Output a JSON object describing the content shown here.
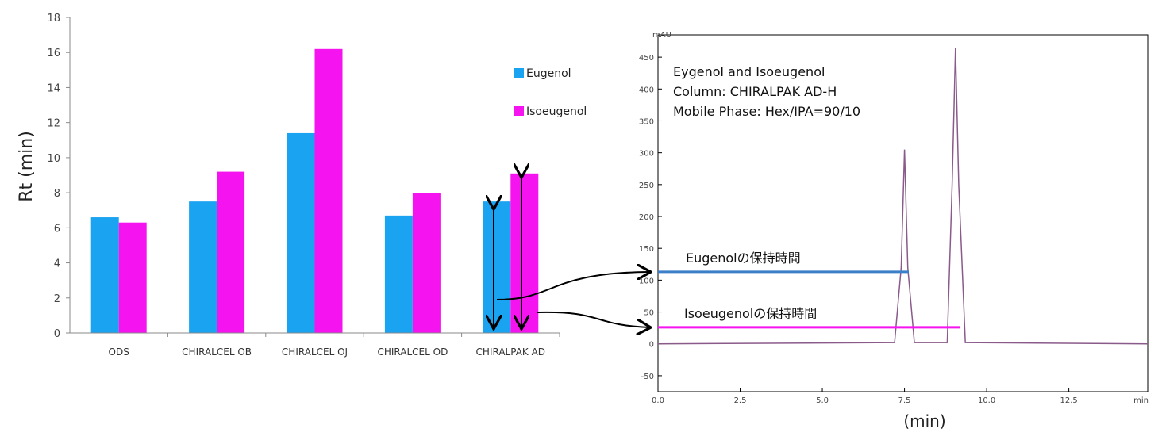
{
  "chart_data": [
    {
      "type": "bar",
      "categories": [
        "ODS",
        "CHIRALCEL OB",
        "CHIRALCEL OJ",
        "CHIRALCEL OD",
        "CHIRALPAK AD"
      ],
      "series": [
        {
          "name": "Eugenol",
          "values": [
            6.6,
            7.5,
            11.4,
            6.7,
            7.5
          ],
          "color": "#1aa3f0"
        },
        {
          "name": "Isoeugenol",
          "values": [
            6.3,
            9.2,
            16.2,
            8.0,
            9.1
          ],
          "color": "#f514f0"
        }
      ],
      "ylabel": "Rt (min)",
      "ylim": [
        0,
        18
      ],
      "yticks": [
        "0",
        "2",
        "4",
        "6",
        "8",
        "10",
        "12",
        "14",
        "16",
        "18"
      ],
      "legend_position": "right"
    },
    {
      "type": "line",
      "x": [
        0,
        7.2,
        7.4,
        7.5,
        7.6,
        7.8,
        8.8,
        8.95,
        9.05,
        9.15,
        9.35,
        14.9
      ],
      "y": [
        0,
        2,
        120,
        305,
        120,
        2,
        2,
        250,
        465,
        250,
        2,
        0
      ],
      "xlabel": "(min)",
      "yunit": "mAU",
      "xunit": "min",
      "xlim": [
        0,
        14.9
      ],
      "ylim": [
        -75,
        485
      ],
      "xticks": [
        "0.0",
        "2.5",
        "5.0",
        "7.5",
        "10.0",
        "12.5"
      ],
      "yticks": [
        "-50",
        "0",
        "50",
        "100",
        "150",
        "200",
        "250",
        "300",
        "350",
        "400",
        "450"
      ],
      "line_color": "#8a5a8a",
      "annotation_lines": [
        "Eygenol and Isoeugenol",
        "Column: CHIRALPAK AD-H",
        "Mobile  Phase: Hex/IPA=90/10"
      ],
      "retention_markers": [
        {
          "label": "Eugenolの保持時間",
          "y": 113,
          "color": "#3a7fc8"
        },
        {
          "label": "Isoeugenolの保持時間",
          "y": 26,
          "color": "#f514f0"
        }
      ]
    }
  ]
}
